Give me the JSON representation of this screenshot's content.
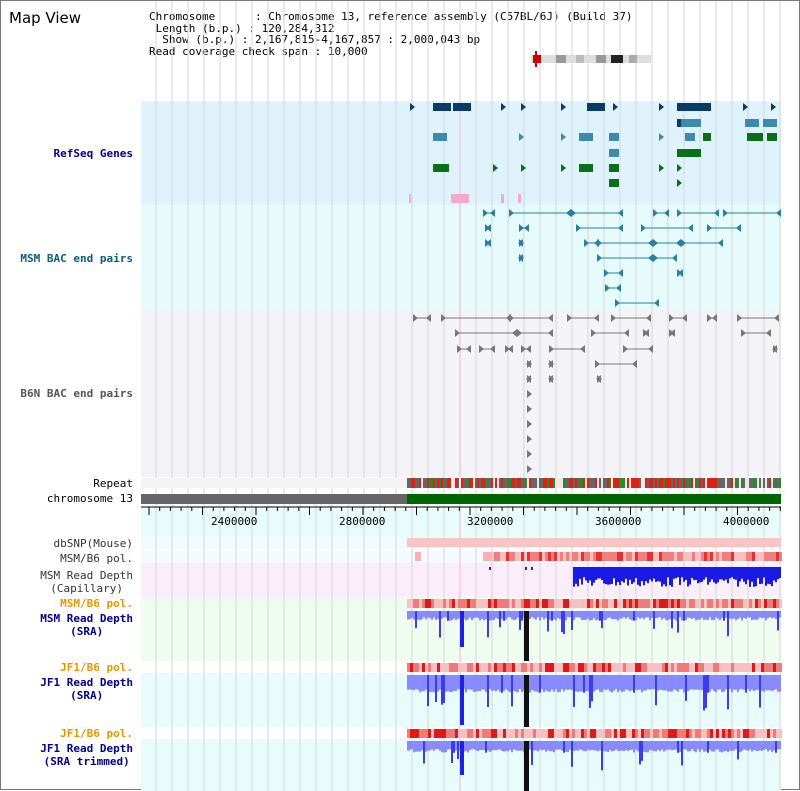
{
  "app_title": "Map View",
  "info": {
    "chromosome_key": "Chromosome",
    "chromosome_val": "Chromosome 13, reference assembly (C57BL/6J) (Build 37)",
    "length_key": "Length (b.p.)",
    "length_val": "120,284,312",
    "show_key": "Show (b.p.)",
    "show_val": "2,167,815-4,167,857 : 2,000,043 bp",
    "coverage_key": "Read coverage check span",
    "coverage_val": "10,000"
  },
  "tracks": {
    "refseq": "RefSeq Genes",
    "msm_bac": "MSM BAC end pairs",
    "b6n_bac": "B6N BAC end pairs",
    "repeat": "Repeat",
    "chromosome": "chromosome 13",
    "dbsnp": "dbSNP(Mouse)",
    "msm_b6_pol_1": "MSM/B6 pol.",
    "msm_depth_cap": "MSM Read Depth\n(Capillary)",
    "msm_b6_pol_2": "MSM/B6 pol.",
    "msm_depth_sra": "MSM Read Depth\n(SRA)",
    "jf1_b6_pol_1": "JF1/B6 pol.",
    "jf1_depth_sra": "JF1 Read Depth\n(SRA)",
    "jf1_b6_pol_2": "JF1/B6 pol.",
    "jf1_depth_trim": "JF1 Read Depth\n(SRA trimmed)"
  },
  "axis": {
    "ticks": [
      "2400000",
      "2800000",
      "3200000",
      "3600000",
      "4000000"
    ]
  },
  "colors": {
    "refseq_bg": "#dff3fc",
    "msm_bac_bg": "#e6fbfb",
    "b6n_bac_bg": "#f4f4f8",
    "depth_blue": "#3b3bf0",
    "depth_light": "#8a8aff",
    "pol_red": "#e8201e",
    "chrom_green": "#006400",
    "chrom_gray": "#666666"
  }
}
